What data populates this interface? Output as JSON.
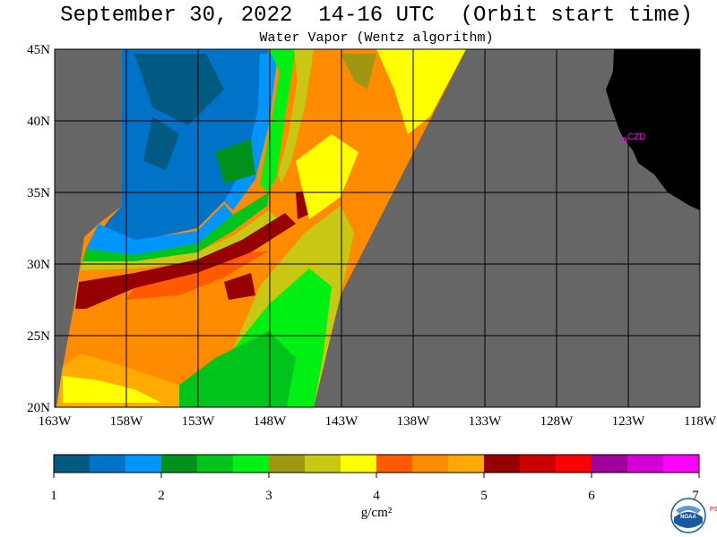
{
  "title": "September 30, 2022  14-16 UTC  (Orbit start time)",
  "subtitle": "Water Vapor (Wentz algorithm)",
  "map": {
    "lat_labels": [
      "45N",
      "40N",
      "35N",
      "30N",
      "25N",
      "20N"
    ],
    "lon_labels": [
      "163W",
      "158W",
      "153W",
      "148W",
      "143W",
      "138W",
      "133W",
      "128W",
      "123W",
      "118W"
    ],
    "lat_range": [
      20,
      45
    ],
    "lon_range": [
      -163,
      -118
    ],
    "station_label": "CZD",
    "colors": {
      "no_data": "#666666",
      "land": "#000000",
      "grid": "#000000",
      "station": "#ff00ff"
    }
  },
  "colorbar": {
    "tick_labels": [
      "1",
      "2",
      "3",
      "4",
      "5",
      "6",
      "7"
    ],
    "units": "g/cm²",
    "range": [
      1,
      7
    ],
    "colors": [
      "#005a82",
      "#0073c8",
      "#0095ff",
      "#00901c",
      "#00c41c",
      "#00f014",
      "#a09614",
      "#c8c814",
      "#ffff00",
      "#ff5a00",
      "#ff8c00",
      "#ffaa00",
      "#960000",
      "#c80000",
      "#ff0000",
      "#a0009b",
      "#d200d2",
      "#ff00ff"
    ]
  },
  "logo": {
    "text": "NOAA",
    "side_text": "PSL"
  }
}
